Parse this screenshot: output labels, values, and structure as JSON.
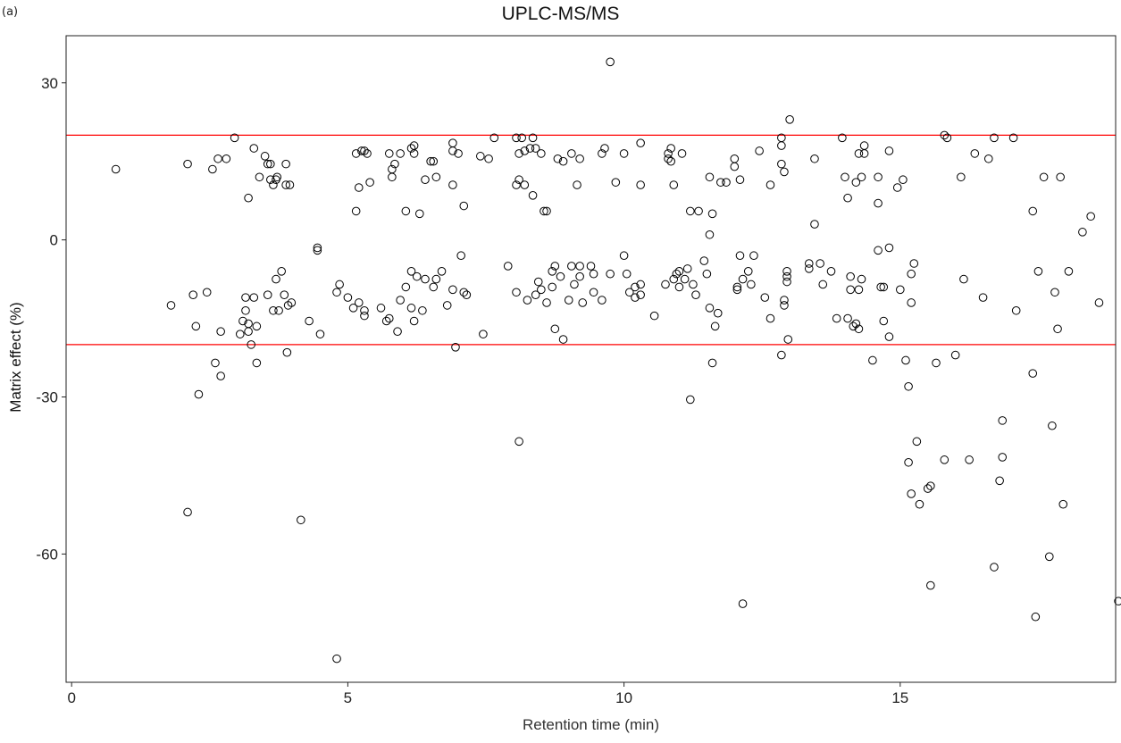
{
  "panel_label": "(a)",
  "chart_data": {
    "type": "scatter",
    "title": "UPLC-MS/MS",
    "xlabel": "Retention time (min)",
    "ylabel": "Matrix effect (%)",
    "xlim": [
      -0.1,
      18.9
    ],
    "ylim": [
      -84.5,
      39
    ],
    "xticks": [
      0,
      5,
      10,
      15
    ],
    "yticks": [
      30,
      0,
      -30,
      -60
    ],
    "xtick_labels": [
      "0",
      "5",
      "10",
      "15"
    ],
    "ytick_labels": [
      "30",
      "0",
      "-30",
      "-60"
    ],
    "grid": false,
    "reference_lines": [
      {
        "y": 20,
        "color": "#ff0000"
      },
      {
        "y": -20,
        "color": "#ff0000"
      }
    ],
    "marker": {
      "shape": "open-circle",
      "color": "#000000"
    },
    "points": [
      [
        0.8,
        13.5
      ],
      [
        1.8,
        -12.5
      ],
      [
        2.1,
        14.5
      ],
      [
        2.1,
        -52
      ],
      [
        2.2,
        -10.5
      ],
      [
        2.25,
        -16.5
      ],
      [
        2.3,
        -29.5
      ],
      [
        2.45,
        -10
      ],
      [
        2.55,
        13.5
      ],
      [
        2.6,
        -23.5
      ],
      [
        2.65,
        15.5
      ],
      [
        2.7,
        -17.5
      ],
      [
        2.7,
        -26
      ],
      [
        2.8,
        15.5
      ],
      [
        2.95,
        19.5
      ],
      [
        3.05,
        -18
      ],
      [
        3.1,
        -15.5
      ],
      [
        3.15,
        -11
      ],
      [
        3.15,
        -13.5
      ],
      [
        3.2,
        -16
      ],
      [
        3.2,
        -17.5
      ],
      [
        3.2,
        8
      ],
      [
        3.25,
        -20
      ],
      [
        3.3,
        17.5
      ],
      [
        3.3,
        -11
      ],
      [
        3.35,
        -16.5
      ],
      [
        3.35,
        -23.5
      ],
      [
        3.4,
        12
      ],
      [
        3.5,
        16
      ],
      [
        3.55,
        14.5
      ],
      [
        3.55,
        -10.5
      ],
      [
        3.6,
        11.5
      ],
      [
        3.6,
        14.5
      ],
      [
        3.65,
        -13.5
      ],
      [
        3.65,
        10.5
      ],
      [
        3.7,
        11.5
      ],
      [
        3.7,
        -7.5
      ],
      [
        3.72,
        12
      ],
      [
        3.75,
        -13.5
      ],
      [
        3.8,
        -6
      ],
      [
        3.85,
        -10.5
      ],
      [
        3.88,
        14.5
      ],
      [
        3.88,
        10.5
      ],
      [
        3.9,
        -21.5
      ],
      [
        3.92,
        -12.5
      ],
      [
        3.95,
        10.5
      ],
      [
        3.98,
        -12
      ],
      [
        4.15,
        -53.5
      ],
      [
        4.3,
        -15.5
      ],
      [
        4.45,
        -2
      ],
      [
        4.45,
        -1.5
      ],
      [
        4.5,
        -18
      ],
      [
        4.8,
        -10
      ],
      [
        4.8,
        -80
      ],
      [
        4.85,
        -8.5
      ],
      [
        5.0,
        -11
      ],
      [
        5.1,
        -13
      ],
      [
        5.15,
        5.5
      ],
      [
        5.15,
        16.5
      ],
      [
        5.2,
        -12
      ],
      [
        5.2,
        10
      ],
      [
        5.25,
        17
      ],
      [
        5.3,
        17
      ],
      [
        5.3,
        -14.5
      ],
      [
        5.3,
        -13.5
      ],
      [
        5.35,
        16.5
      ],
      [
        5.4,
        11
      ],
      [
        5.6,
        -13
      ],
      [
        5.7,
        -15.5
      ],
      [
        5.75,
        16.5
      ],
      [
        5.75,
        -15
      ],
      [
        5.8,
        12
      ],
      [
        5.8,
        13.5
      ],
      [
        5.85,
        14.5
      ],
      [
        5.9,
        -17.5
      ],
      [
        5.95,
        16.5
      ],
      [
        5.95,
        -11.5
      ],
      [
        6.05,
        -9
      ],
      [
        6.05,
        5.5
      ],
      [
        6.15,
        17.5
      ],
      [
        6.15,
        -6
      ],
      [
        6.15,
        -13
      ],
      [
        6.2,
        18
      ],
      [
        6.2,
        16.5
      ],
      [
        6.2,
        -15.5
      ],
      [
        6.25,
        -7
      ],
      [
        6.3,
        5
      ],
      [
        6.35,
        -13.5
      ],
      [
        6.4,
        11.5
      ],
      [
        6.4,
        -7.5
      ],
      [
        6.5,
        15
      ],
      [
        6.55,
        -9
      ],
      [
        6.55,
        15
      ],
      [
        6.6,
        12
      ],
      [
        6.6,
        -7.5
      ],
      [
        6.7,
        -6
      ],
      [
        6.8,
        -12.5
      ],
      [
        6.9,
        18.5
      ],
      [
        6.9,
        17
      ],
      [
        6.9,
        10.5
      ],
      [
        6.9,
        -9.5
      ],
      [
        6.95,
        -20.5
      ],
      [
        7.0,
        16.5
      ],
      [
        7.05,
        -3
      ],
      [
        7.1,
        6.5
      ],
      [
        7.1,
        -10
      ],
      [
        7.15,
        -10.5
      ],
      [
        7.4,
        16
      ],
      [
        7.45,
        -18
      ],
      [
        7.55,
        15.5
      ],
      [
        7.65,
        19.5
      ],
      [
        7.9,
        -5
      ],
      [
        8.05,
        19.5
      ],
      [
        8.05,
        10.5
      ],
      [
        8.05,
        -10
      ],
      [
        8.1,
        11.5
      ],
      [
        8.1,
        16.5
      ],
      [
        8.1,
        -38.5
      ],
      [
        8.15,
        19.5
      ],
      [
        8.2,
        17
      ],
      [
        8.2,
        10.5
      ],
      [
        8.25,
        -11.5
      ],
      [
        8.3,
        17.5
      ],
      [
        8.35,
        8.5
      ],
      [
        8.35,
        19.5
      ],
      [
        8.4,
        17.5
      ],
      [
        8.4,
        -10.5
      ],
      [
        8.45,
        -8
      ],
      [
        8.5,
        16.5
      ],
      [
        8.5,
        -9.5
      ],
      [
        8.55,
        5.5
      ],
      [
        8.6,
        5.5
      ],
      [
        8.6,
        -12
      ],
      [
        8.7,
        -6
      ],
      [
        8.7,
        -9
      ],
      [
        8.75,
        -5
      ],
      [
        8.75,
        -17
      ],
      [
        8.8,
        15.5
      ],
      [
        8.85,
        -7
      ],
      [
        8.9,
        -19
      ],
      [
        8.9,
        15
      ],
      [
        9.0,
        -11.5
      ],
      [
        9.05,
        -5
      ],
      [
        9.05,
        16.5
      ],
      [
        9.1,
        -8.5
      ],
      [
        9.15,
        10.5
      ],
      [
        9.2,
        -7
      ],
      [
        9.2,
        15.5
      ],
      [
        9.2,
        -5
      ],
      [
        9.25,
        -12
      ],
      [
        9.4,
        -5
      ],
      [
        9.45,
        -10
      ],
      [
        9.45,
        -6.5
      ],
      [
        9.6,
        -11.5
      ],
      [
        9.6,
        16.5
      ],
      [
        9.65,
        17.5
      ],
      [
        9.75,
        -6.5
      ],
      [
        9.75,
        34
      ],
      [
        9.85,
        11
      ],
      [
        10.0,
        -3
      ],
      [
        10.0,
        16.5
      ],
      [
        10.05,
        -6.5
      ],
      [
        10.1,
        -10
      ],
      [
        10.2,
        -11
      ],
      [
        10.2,
        -9
      ],
      [
        10.3,
        18.5
      ],
      [
        10.3,
        -8.5
      ],
      [
        10.3,
        -10.5
      ],
      [
        10.3,
        10.5
      ],
      [
        10.55,
        -14.5
      ],
      [
        10.75,
        -8.5
      ],
      [
        10.8,
        16.5
      ],
      [
        10.8,
        15.5
      ],
      [
        10.85,
        17.5
      ],
      [
        10.85,
        15
      ],
      [
        10.9,
        -7.5
      ],
      [
        10.9,
        10.5
      ],
      [
        10.95,
        -6.5
      ],
      [
        11.0,
        -6
      ],
      [
        11.0,
        -9
      ],
      [
        11.05,
        16.5
      ],
      [
        11.1,
        -7.5
      ],
      [
        11.15,
        -5.5
      ],
      [
        11.2,
        -30.5
      ],
      [
        11.2,
        5.5
      ],
      [
        11.25,
        -8.5
      ],
      [
        11.3,
        -10.5
      ],
      [
        11.35,
        5.5
      ],
      [
        11.45,
        -4
      ],
      [
        11.5,
        -6.5
      ],
      [
        11.55,
        1
      ],
      [
        11.55,
        12
      ],
      [
        11.55,
        -13
      ],
      [
        11.6,
        5
      ],
      [
        11.6,
        -23.5
      ],
      [
        11.65,
        -16.5
      ],
      [
        11.7,
        -14
      ],
      [
        11.75,
        11
      ],
      [
        11.85,
        11
      ],
      [
        12.0,
        15.5
      ],
      [
        12.0,
        14
      ],
      [
        12.05,
        -9
      ],
      [
        12.05,
        -9.5
      ],
      [
        12.1,
        -3
      ],
      [
        12.1,
        11.5
      ],
      [
        12.15,
        -7.5
      ],
      [
        12.15,
        -69.5
      ],
      [
        12.25,
        -6
      ],
      [
        12.3,
        -8.5
      ],
      [
        12.35,
        -3
      ],
      [
        12.45,
        17
      ],
      [
        12.55,
        -11
      ],
      [
        12.65,
        10.5
      ],
      [
        12.65,
        -15
      ],
      [
        12.85,
        -22
      ],
      [
        12.85,
        14.5
      ],
      [
        12.85,
        19.5
      ],
      [
        12.85,
        18
      ],
      [
        12.9,
        -11.5
      ],
      [
        12.9,
        -12.5
      ],
      [
        12.9,
        13
      ],
      [
        12.95,
        -6
      ],
      [
        12.95,
        -7
      ],
      [
        12.95,
        -8
      ],
      [
        12.97,
        -19
      ],
      [
        13.0,
        23
      ],
      [
        13.35,
        -5.5
      ],
      [
        13.35,
        -4.5
      ],
      [
        13.45,
        3
      ],
      [
        13.45,
        15.5
      ],
      [
        13.55,
        -4.5
      ],
      [
        13.6,
        -8.5
      ],
      [
        13.75,
        -6
      ],
      [
        13.85,
        -15
      ],
      [
        13.95,
        19.5
      ],
      [
        14.0,
        12
      ],
      [
        14.05,
        8
      ],
      [
        14.05,
        -15
      ],
      [
        14.1,
        -9.5
      ],
      [
        14.1,
        -7
      ],
      [
        14.15,
        -16.5
      ],
      [
        14.2,
        -16
      ],
      [
        14.2,
        11
      ],
      [
        14.25,
        -9.5
      ],
      [
        14.25,
        -17
      ],
      [
        14.25,
        16.5
      ],
      [
        14.3,
        -7.5
      ],
      [
        14.3,
        12
      ],
      [
        14.35,
        18
      ],
      [
        14.35,
        16.5
      ],
      [
        14.5,
        -23
      ],
      [
        14.6,
        7
      ],
      [
        14.6,
        -2
      ],
      [
        14.6,
        12
      ],
      [
        14.65,
        -9
      ],
      [
        14.7,
        -9
      ],
      [
        14.7,
        -15.5
      ],
      [
        14.8,
        -18.5
      ],
      [
        14.8,
        17
      ],
      [
        14.8,
        -1.5
      ],
      [
        14.95,
        10
      ],
      [
        15.0,
        -9.5
      ],
      [
        15.05,
        11.5
      ],
      [
        15.1,
        -23
      ],
      [
        15.15,
        -42.5
      ],
      [
        15.15,
        -28
      ],
      [
        15.2,
        -12
      ],
      [
        15.2,
        -6.5
      ],
      [
        15.2,
        -48.5
      ],
      [
        15.25,
        -4.5
      ],
      [
        15.3,
        -38.5
      ],
      [
        15.35,
        -50.5
      ],
      [
        15.5,
        -47.5
      ],
      [
        15.55,
        -66
      ],
      [
        15.55,
        -47
      ],
      [
        15.65,
        -23.5
      ],
      [
        15.8,
        -42
      ],
      [
        15.8,
        20
      ],
      [
        15.85,
        19.5
      ],
      [
        16.0,
        -22
      ],
      [
        16.1,
        12
      ],
      [
        16.15,
        -7.5
      ],
      [
        16.25,
        -42
      ],
      [
        16.35,
        16.5
      ],
      [
        16.5,
        -11
      ],
      [
        16.6,
        15.5
      ],
      [
        16.7,
        -62.5
      ],
      [
        16.7,
        19.5
      ],
      [
        16.8,
        -46
      ],
      [
        16.85,
        -41.5
      ],
      [
        16.85,
        -34.5
      ],
      [
        17.05,
        19.5
      ],
      [
        17.1,
        -13.5
      ],
      [
        17.4,
        -25.5
      ],
      [
        17.4,
        5.5
      ],
      [
        17.45,
        -72
      ],
      [
        17.5,
        -6
      ],
      [
        17.6,
        12
      ],
      [
        17.7,
        -60.5
      ],
      [
        17.75,
        -35.5
      ],
      [
        17.8,
        -10
      ],
      [
        17.85,
        -17
      ],
      [
        17.9,
        12
      ],
      [
        17.95,
        -50.5
      ],
      [
        18.05,
        -6
      ],
      [
        18.3,
        1.5
      ],
      [
        18.45,
        4.5
      ],
      [
        18.6,
        -12
      ],
      [
        18.95,
        -69
      ]
    ]
  }
}
